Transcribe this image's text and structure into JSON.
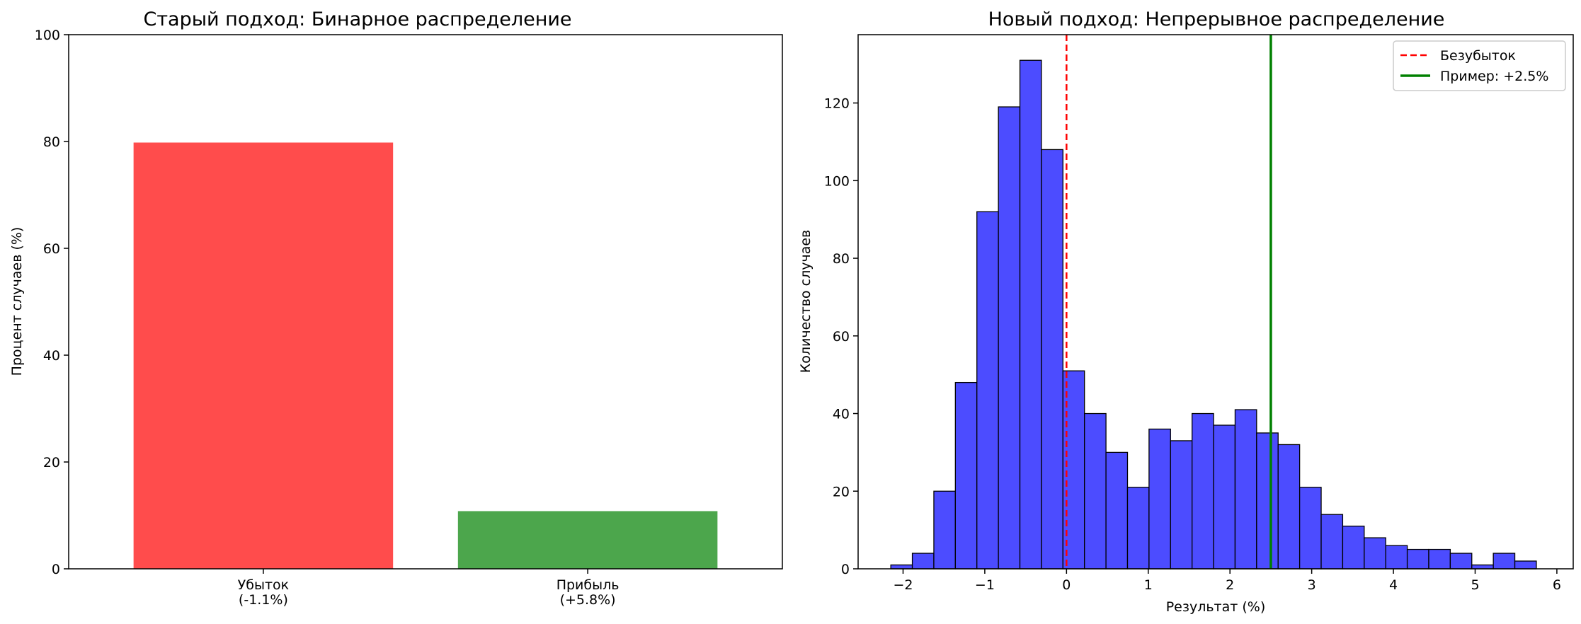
{
  "chart_data": [
    {
      "type": "bar",
      "title": "Старый подход: Бинарное распределение",
      "xlabel": "",
      "ylabel": "Процент случаев (%)",
      "categories": [
        "Убыток\n(-1.1%)",
        "Прибыль\n(+5.8%)"
      ],
      "values": [
        79.8,
        10.8
      ],
      "colors": [
        "#ff4c4c",
        "#4ca64c"
      ],
      "ylim": [
        0,
        100
      ],
      "yticks": [
        0,
        20,
        40,
        60,
        80,
        100
      ],
      "grid": false
    },
    {
      "type": "bar",
      "subtype": "histogram",
      "title": "Новый подход: Непрерывное распределение",
      "xlabel": "Результат (%)",
      "ylabel": "Количество случаев",
      "bin_start": -2.15,
      "bin_width": 0.2633,
      "counts": [
        1,
        4,
        20,
        48,
        92,
        119,
        131,
        108,
        51,
        40,
        30,
        21,
        36,
        33,
        40,
        37,
        41,
        35,
        32,
        21,
        14,
        11,
        8,
        6,
        5,
        5,
        4,
        1,
        4,
        2
      ],
      "bar_color": "#4c4cff",
      "edge_color": "#000000",
      "xlim": [
        -2.55,
        6.2
      ],
      "ylim": [
        0,
        137.6
      ],
      "xticks": [
        -2,
        -1,
        0,
        1,
        2,
        3,
        4,
        5,
        6
      ],
      "yticks": [
        0,
        20,
        40,
        60,
        80,
        100,
        120
      ],
      "lines": [
        {
          "x": 0,
          "style": "dashed",
          "color": "#ff0000",
          "label": "Безубыток"
        },
        {
          "x": 2.5,
          "style": "solid",
          "color": "#008000",
          "label": "Пример: +2.5%"
        }
      ],
      "legend": "top-right",
      "grid": false
    }
  ]
}
